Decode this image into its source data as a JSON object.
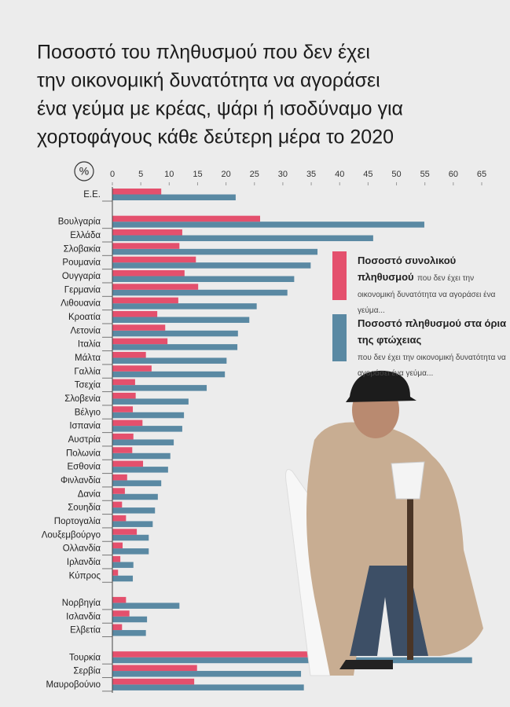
{
  "chart_data": {
    "type": "bar",
    "orientation": "horizontal",
    "title": [
      "Ποσοστό του πληθυσμού που δεν έχει",
      "την οικονομική δυνατότητα να αγοράσει",
      "ένα γεύμα με κρέας, ψάρι ή ισοδύναμο για",
      "χορτοφάγους κάθε δεύτερη μέρα το 2020"
    ],
    "x_axis_label": "%",
    "categories": [
      "Ε.Ε.",
      null,
      "Βουλγαρία",
      "Ελλάδα",
      "Σλοβακία",
      "Ρουμανία",
      "Ουγγαρία",
      "Γερμανία",
      "Λιθουανία",
      "Κροατία",
      "Λετονία",
      "Ιταλία",
      "Μάλτα",
      "Γαλλία",
      "Τσεχία",
      "Σλοβενία",
      "Βέλγιο",
      "Ισπανία",
      "Αυστρία",
      "Πολωνία",
      "Εσθονία",
      "Φινλανδία",
      "Δανία",
      "Σουηδία",
      "Πορτογαλία",
      "Λουξεμβούργο",
      "Ολλανδία",
      "Ιρλανδία",
      "Κύπρος",
      null,
      "Νορβηγία",
      "Ισλανδία",
      "Ελβετία",
      null,
      "Τουρκία",
      "Σερβία",
      "Μαυροβούνιο"
    ],
    "series": [
      {
        "name": "Ποσοστό συνολικού πληθυσμού",
        "description": "που δεν έχει την οικονομική δυνατότητα να αγοράσει ένα γεύμα...",
        "color": "#e4506d",
        "values": [
          8.6,
          null,
          26.0,
          12.3,
          11.8,
          14.7,
          12.7,
          15.1,
          11.6,
          7.9,
          9.3,
          9.7,
          5.9,
          6.9,
          4.0,
          4.1,
          3.6,
          5.3,
          3.7,
          3.5,
          5.4,
          2.6,
          2.2,
          1.7,
          2.4,
          4.3,
          1.8,
          1.4,
          1.0,
          null,
          2.4,
          3.0,
          1.7,
          null,
          37.3,
          14.9,
          14.4
        ]
      },
      {
        "name": "Ποσοστό πληθυσμού στα όρια της φτώχειας",
        "description": "που δεν έχει την οικονομική δυνατότητα να αγοράσει ένα γεύμα...",
        "color": "#5a89a3",
        "values": [
          21.7,
          null,
          54.9,
          45.9,
          36.1,
          34.9,
          32.0,
          30.8,
          25.4,
          24.1,
          22.1,
          22.0,
          20.1,
          19.8,
          16.6,
          13.4,
          12.6,
          12.3,
          10.8,
          10.2,
          9.8,
          8.6,
          8.0,
          7.5,
          7.1,
          6.4,
          6.4,
          3.7,
          3.6,
          null,
          11.8,
          6.1,
          5.9,
          null,
          63.3,
          33.2,
          33.7
        ]
      }
    ],
    "xlim": [
      0,
      65
    ],
    "xticks": [
      0,
      5,
      10,
      15,
      20,
      25,
      30,
      35,
      40,
      45,
      50,
      55,
      60,
      65
    ]
  }
}
